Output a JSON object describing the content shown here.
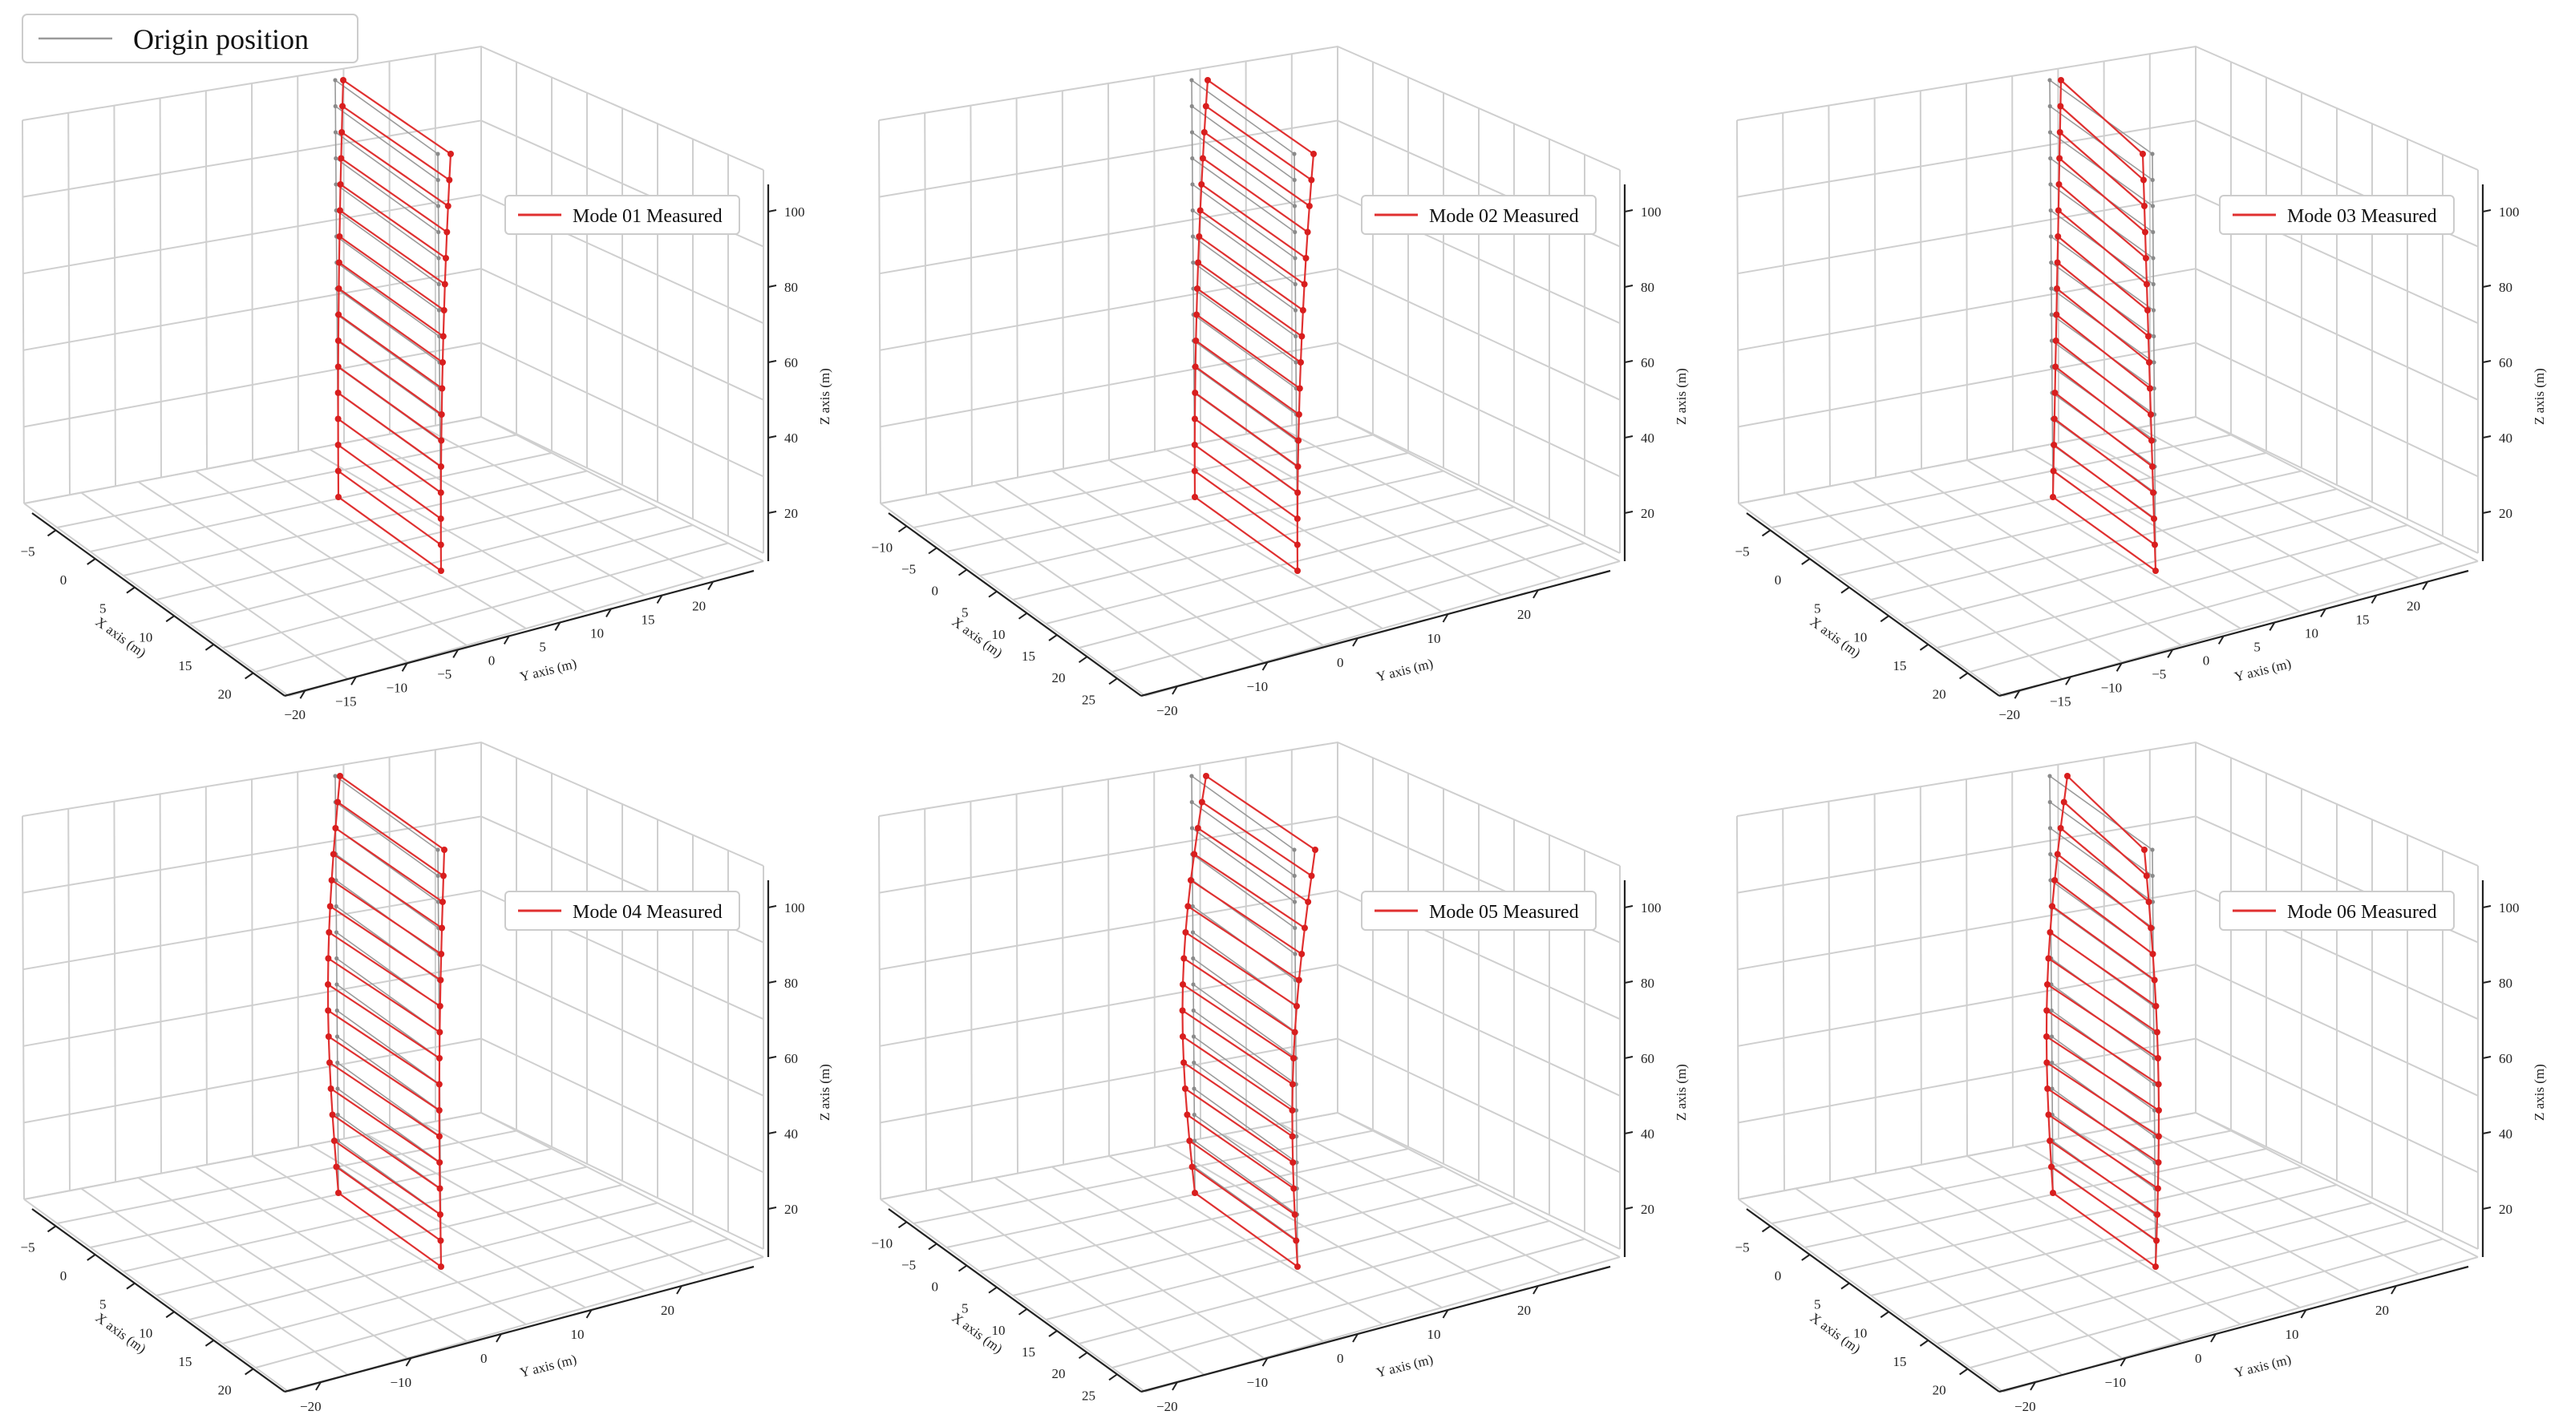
{
  "global_legend": {
    "label": "Origin position",
    "color": "#9a9a9a"
  },
  "colors": {
    "measured": "#e03030",
    "origin": "#9a9a9a",
    "grid": "#cfcfcf"
  },
  "chart_data": [
    {
      "type": "line",
      "title": "",
      "legend": "Mode 01 Measured",
      "xlabel": "X axis (m)",
      "ylabel": "Y axis (m)",
      "zlabel": "Z axis (m)",
      "x_ticks": [
        "−5",
        "0",
        "5",
        "10",
        "15",
        "20"
      ],
      "y_ticks": [
        "−20",
        "−15",
        "−10",
        "−5",
        "0",
        "5",
        "10",
        "15",
        "20"
      ],
      "z_ticks": [
        "20",
        "40",
        "60",
        "80",
        "100"
      ],
      "mode_shape": "first-bending"
    },
    {
      "type": "line",
      "title": "",
      "legend": "Mode 02 Measured",
      "xlabel": "X axis (m)",
      "ylabel": "Y axis (m)",
      "zlabel": "Z axis (m)",
      "x_ticks": [
        "−10",
        "−5",
        "0",
        "5",
        "10",
        "15",
        "20",
        "25"
      ],
      "y_ticks": [
        "−20",
        "−10",
        "0",
        "10",
        "20"
      ],
      "z_ticks": [
        "20",
        "40",
        "60",
        "80",
        "100"
      ],
      "mode_shape": "first-bending-y"
    },
    {
      "type": "line",
      "title": "",
      "legend": "Mode 03 Measured",
      "xlabel": "X axis (m)",
      "ylabel": "Y axis (m)",
      "zlabel": "Z axis (m)",
      "x_ticks": [
        "−5",
        "0",
        "5",
        "10",
        "15",
        "20"
      ],
      "y_ticks": [
        "−20",
        "−15",
        "−10",
        "−5",
        "0",
        "5",
        "10",
        "15",
        "20"
      ],
      "z_ticks": [
        "20",
        "40",
        "60",
        "80",
        "100"
      ],
      "mode_shape": "torsion"
    },
    {
      "type": "line",
      "title": "",
      "legend": "Mode 04 Measured",
      "xlabel": "X axis (m)",
      "ylabel": "Y axis (m)",
      "zlabel": "Z axis (m)",
      "x_ticks": [
        "−5",
        "0",
        "5",
        "10",
        "15",
        "20"
      ],
      "y_ticks": [
        "−20",
        "−10",
        "0",
        "10",
        "20"
      ],
      "z_ticks": [
        "20",
        "40",
        "60",
        "80",
        "100"
      ],
      "mode_shape": "second-bending"
    },
    {
      "type": "line",
      "title": "",
      "legend": "Mode 05 Measured",
      "xlabel": "X axis (m)",
      "ylabel": "Y axis (m)",
      "zlabel": "Z axis (m)",
      "x_ticks": [
        "−10",
        "−5",
        "0",
        "5",
        "10",
        "15",
        "20",
        "25"
      ],
      "y_ticks": [
        "−20",
        "−10",
        "0",
        "10",
        "20"
      ],
      "z_ticks": [
        "20",
        "40",
        "60",
        "80",
        "100"
      ],
      "mode_shape": "second-bending-y"
    },
    {
      "type": "line",
      "title": "",
      "legend": "Mode 06 Measured",
      "xlabel": "X axis (m)",
      "ylabel": "Y axis (m)",
      "zlabel": "Z axis (m)",
      "x_ticks": [
        "−5",
        "0",
        "5",
        "10",
        "15",
        "20"
      ],
      "y_ticks": [
        "−20",
        "−10",
        "0",
        "10",
        "20"
      ],
      "z_ticks": [
        "20",
        "40",
        "60",
        "80",
        "100"
      ],
      "mode_shape": "second-torsion"
    }
  ]
}
